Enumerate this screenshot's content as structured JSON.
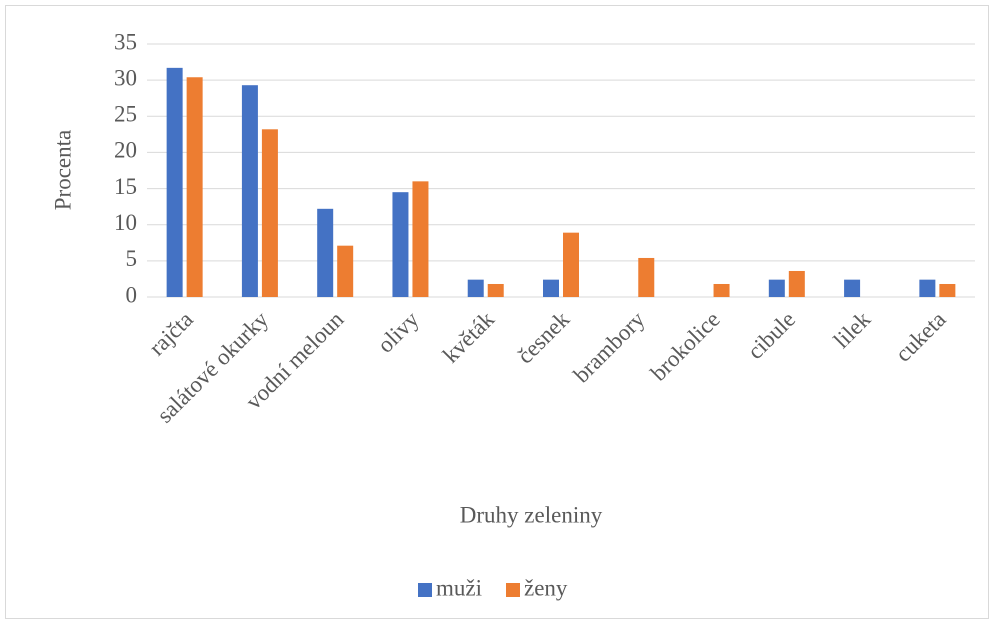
{
  "chart_data": {
    "type": "bar",
    "categories": [
      "rajčta",
      "salátové okurky",
      "vodní meloun",
      "olivy",
      "květák",
      "česnek",
      "brambory",
      "brokolice",
      "cibule",
      "lilek",
      "cuketa"
    ],
    "series": [
      {
        "name": "muži",
        "color": "#4472c4",
        "values": [
          31.7,
          29.3,
          12.2,
          14.5,
          2.4,
          2.4,
          0,
          0,
          2.4,
          2.4,
          2.4
        ]
      },
      {
        "name": "ženy",
        "color": "#ed7d31",
        "values": [
          30.4,
          23.2,
          7.1,
          16.0,
          1.8,
          8.9,
          5.4,
          1.8,
          3.6,
          0,
          1.8
        ]
      }
    ],
    "y_label": "Procenta",
    "x_label": "Druhy zeleniny",
    "ylim": [
      0,
      35
    ],
    "yticks": [
      0,
      5,
      10,
      15,
      20,
      25,
      30,
      35
    ],
    "grid": true,
    "legend": "bottom"
  }
}
